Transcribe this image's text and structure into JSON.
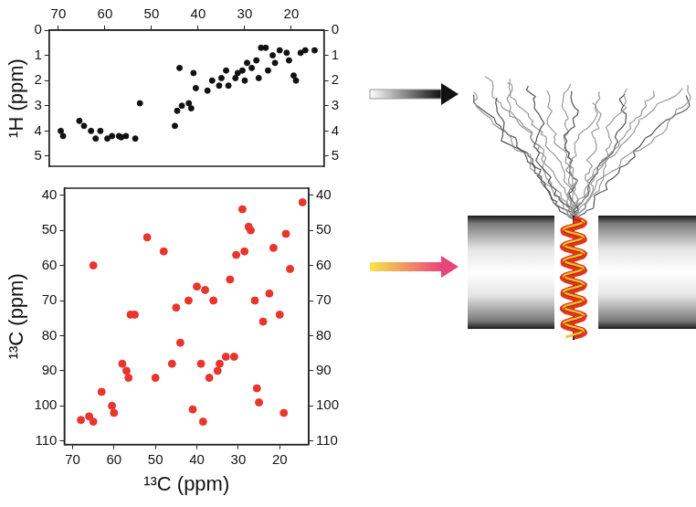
{
  "chart_data": [
    {
      "type": "scatter",
      "y_label": "¹H (ppm)",
      "x": [
        69.5,
        69,
        65.5,
        64.5,
        63,
        62,
        61,
        59.5,
        58.5,
        57,
        56.5,
        55.5,
        53.5,
        52.5,
        45,
        44.5,
        44,
        43.5,
        42,
        41.5,
        41,
        40.5,
        38,
        37,
        35.5,
        35,
        34,
        33.5,
        32,
        31.5,
        30.5,
        30,
        29.5,
        28.5,
        27.5,
        27,
        26.5,
        25.5,
        25,
        24,
        23.5,
        22.5,
        21,
        20.5,
        19.5,
        19,
        18,
        17,
        15
      ],
      "values": [
        4.0,
        4.2,
        3.6,
        3.8,
        4.0,
        4.3,
        4.0,
        4.3,
        4.2,
        4.2,
        4.25,
        4.2,
        4.3,
        2.9,
        3.8,
        3.2,
        1.5,
        3.0,
        2.9,
        3.1,
        1.7,
        2.3,
        2.4,
        2.0,
        2.2,
        1.9,
        1.6,
        2.2,
        1.9,
        1.7,
        1.6,
        2.0,
        1.3,
        1.5,
        1.2,
        1.9,
        0.7,
        0.7,
        1.6,
        1.0,
        1.3,
        0.8,
        0.9,
        1.2,
        1.8,
        2.0,
        0.9,
        0.8,
        0.8
      ],
      "color": "#111111",
      "marker": "circle",
      "xlim": [
        72,
        13
      ],
      "xticks": [
        70,
        60,
        50,
        40,
        30,
        20
      ],
      "ylim": [
        5.4,
        0
      ],
      "yticks": [
        0,
        1,
        2,
        3,
        4,
        5
      ],
      "grid": false
    },
    {
      "type": "scatter",
      "x_label": "¹³C (ppm)",
      "y_label": "¹³C (ppm)",
      "x": [
        66,
        65,
        60,
        60.5,
        58,
        57,
        56.5,
        56,
        55,
        45,
        42,
        41,
        38.5,
        38,
        37,
        35,
        34.5,
        33,
        31,
        30.5,
        29,
        28.5,
        27.5,
        27,
        26,
        25.5,
        25,
        24,
        22.5,
        21.5,
        20,
        19,
        18.5,
        17.5,
        14.5,
        46,
        44,
        40,
        36,
        32,
        63,
        65,
        52,
        50,
        68,
        39,
        48
      ],
      "values": [
        103,
        104.5,
        102,
        100,
        88,
        90,
        92,
        74,
        74,
        72,
        70,
        101,
        104.5,
        67,
        92,
        90,
        88,
        86,
        86,
        57,
        44,
        56,
        49,
        50,
        70,
        95,
        99,
        76,
        68,
        55,
        74,
        102,
        51,
        61,
        42,
        88,
        82,
        66,
        70,
        64,
        96,
        60,
        52,
        92,
        104,
        88,
        56
      ],
      "color": "#e8362e",
      "marker": "circle",
      "xlim": [
        72,
        13
      ],
      "xticks": [
        70,
        60,
        50,
        40,
        30,
        20
      ],
      "ylim": [
        111,
        38
      ],
      "yticks": [
        40,
        50,
        60,
        70,
        80,
        90,
        100,
        110
      ],
      "grid": false
    }
  ]
}
